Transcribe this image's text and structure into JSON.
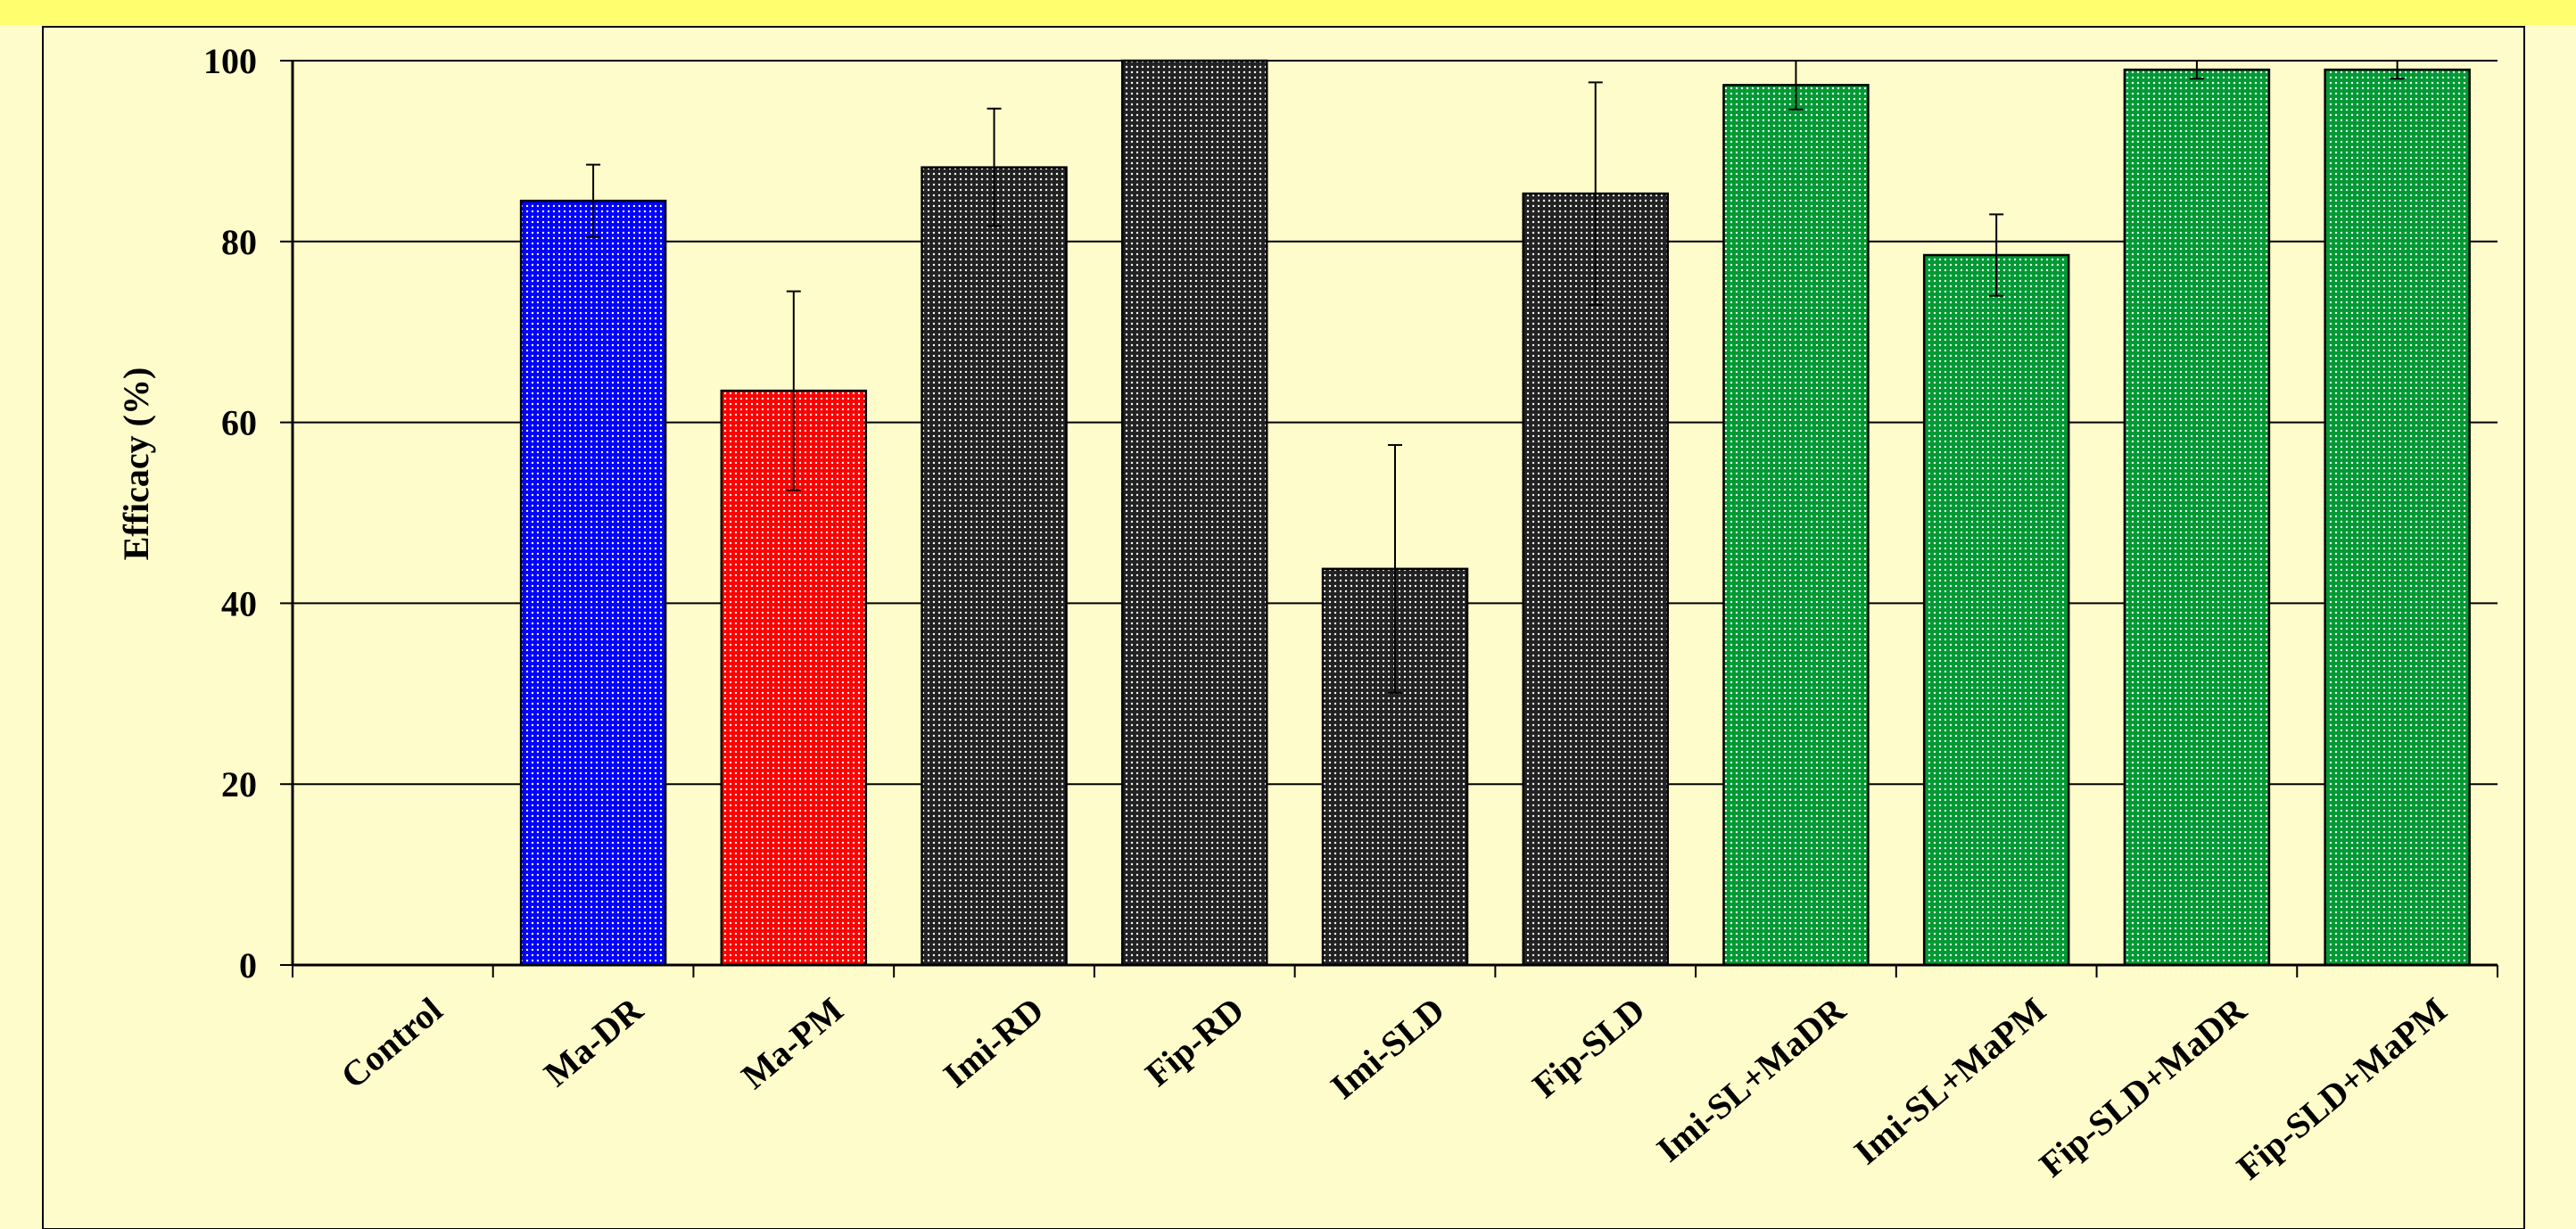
{
  "chart_data": {
    "type": "bar",
    "title": "",
    "xlabel": "",
    "ylabel": "Efficacy (%)",
    "ylim": [
      0,
      100
    ],
    "yticks": [
      0,
      20,
      40,
      60,
      80,
      100
    ],
    "grid": true,
    "categories": [
      "Control",
      "Ma-DR",
      "Ma-PM",
      "Imi-RD",
      "Fip-RD",
      "Imi-SLD",
      "Fip-SLD",
      "Imi-SL+MaDR",
      "Imi-SL+MaPM",
      "Fip-SLD+MaDR",
      "Fip-SLD+MaPM"
    ],
    "values": [
      0,
      84.5,
      63.5,
      88.2,
      100,
      43.8,
      85.3,
      97.3,
      78.5,
      99,
      99
    ],
    "errors": [
      0,
      4,
      11,
      6.5,
      0,
      13.7,
      12.3,
      2.7,
      4.5,
      1,
      1
    ],
    "colors": [
      "#0000ff",
      "#0000ff",
      "#ff0000",
      "#222222",
      "#222222",
      "#222222",
      "#222222",
      "#009933",
      "#009933",
      "#009933",
      "#009933"
    ]
  }
}
